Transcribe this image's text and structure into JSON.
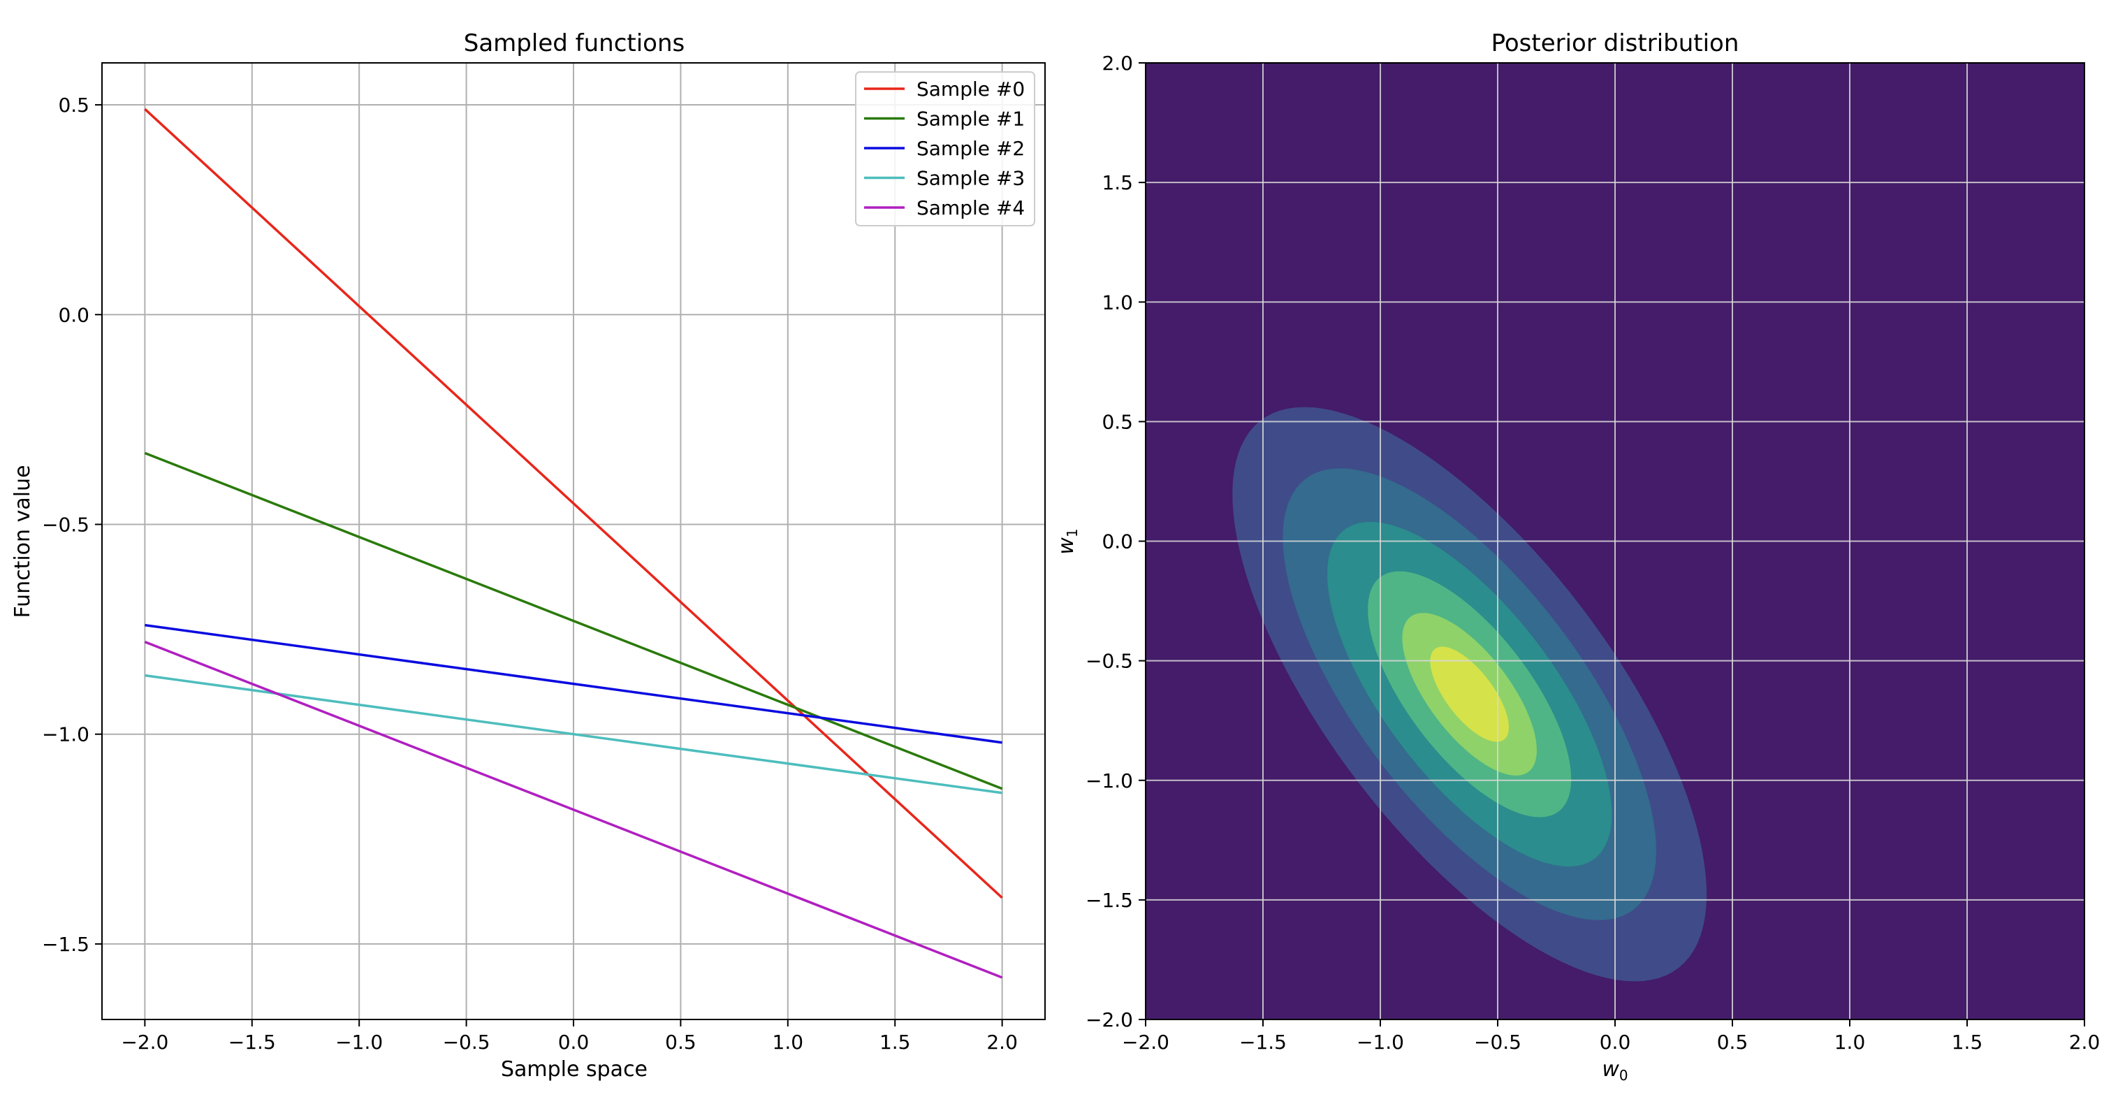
{
  "chart_data": [
    {
      "type": "line",
      "title": "Sampled functions",
      "xlabel": "Sample space",
      "ylabel": "Function value",
      "xlim": [
        -2.2,
        2.2
      ],
      "ylim": [
        -1.68,
        0.6
      ],
      "x_ticks": [
        -2.0,
        -1.5,
        -1.0,
        -0.5,
        0.0,
        0.5,
        1.0,
        1.5,
        2.0
      ],
      "x_tick_labels": [
        "−2.0",
        "−1.5",
        "−1.0",
        "−0.5",
        "0.0",
        "0.5",
        "1.0",
        "1.5",
        "2.0"
      ],
      "y_ticks": [
        0.5,
        0.0,
        -0.5,
        -1.0,
        -1.5
      ],
      "y_tick_labels": [
        "0.5",
        "0.0",
        "−0.5",
        "−1.0",
        "−1.5"
      ],
      "grid": true,
      "legend_position": "top-right",
      "x": [
        -2.0,
        2.0
      ],
      "series": [
        {
          "name": "Sample #0",
          "color": "#e8261a",
          "values": [
            0.49,
            -1.39
          ]
        },
        {
          "name": "Sample #1",
          "color": "#2a7a0b",
          "values": [
            -0.33,
            -1.13
          ]
        },
        {
          "name": "Sample #2",
          "color": "#0a0ae0",
          "values": [
            -0.74,
            -1.02
          ]
        },
        {
          "name": "Sample #3",
          "color": "#4dbdbd",
          "values": [
            -0.86,
            -1.14
          ]
        },
        {
          "name": "Sample #4",
          "color": "#b01fc0",
          "values": [
            -0.78,
            -1.58
          ]
        }
      ]
    },
    {
      "type": "contour",
      "title": "Posterior distribution",
      "xlabel": "w",
      "xlabel_sub": "0",
      "ylabel": "w",
      "ylabel_sub": "1",
      "xlim": [
        -2.0,
        2.0
      ],
      "ylim": [
        -2.0,
        2.0
      ],
      "x_ticks": [
        -2.0,
        -1.5,
        -1.0,
        -0.5,
        0.0,
        0.5,
        1.0,
        1.5,
        2.0
      ],
      "x_tick_labels": [
        "−2.0",
        "−1.5",
        "−1.0",
        "−0.5",
        "0.0",
        "0.5",
        "1.0",
        "1.5",
        "2.0"
      ],
      "y_ticks": [
        2.0,
        1.5,
        1.0,
        0.5,
        0.0,
        -0.5,
        -1.0,
        -1.5,
        -2.0
      ],
      "y_tick_labels": [
        "2.0",
        "1.5",
        "1.0",
        "0.5",
        "0.0",
        "−0.5",
        "−1.0",
        "−1.5",
        "−2.0"
      ],
      "grid": true,
      "background_color": "#441c69",
      "center": [
        -0.62,
        -0.64
      ],
      "levels": [
        {
          "level": 1,
          "color": "#3f4c89",
          "semi_major": 1.45,
          "semi_minor": 0.6,
          "angle_deg": -52
        },
        {
          "level": 2,
          "color": "#346b8e",
          "semi_major": 1.14,
          "semi_minor": 0.475,
          "angle_deg": -52
        },
        {
          "level": 3,
          "color": "#2b8d8d",
          "semi_major": 0.87,
          "semi_minor": 0.36,
          "angle_deg": -52
        },
        {
          "level": 4,
          "color": "#4fb586",
          "semi_major": 0.62,
          "semi_minor": 0.26,
          "angle_deg": -52
        },
        {
          "level": 5,
          "color": "#8fd26a",
          "semi_major": 0.41,
          "semi_minor": 0.172,
          "angle_deg": -52
        },
        {
          "level": 6,
          "color": "#d5e24a",
          "semi_major": 0.24,
          "semi_minor": 0.1,
          "angle_deg": -52
        }
      ]
    }
  ]
}
